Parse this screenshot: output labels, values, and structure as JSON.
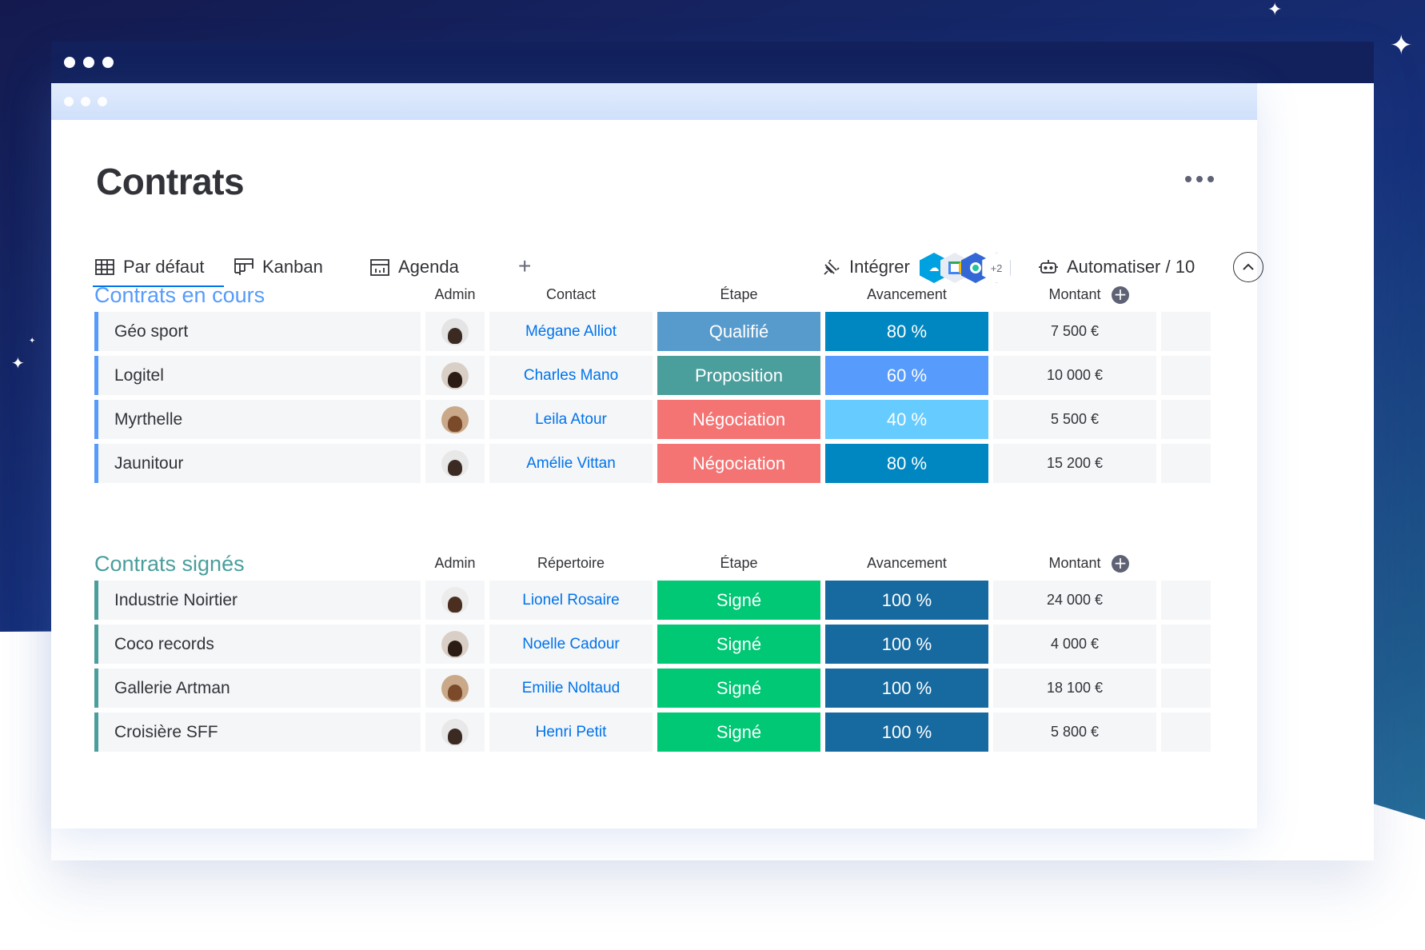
{
  "page_title": "Contrats",
  "tabs": [
    {
      "label": "Par défaut",
      "icon": "table-icon"
    },
    {
      "label": "Kanban",
      "icon": "kanban-icon"
    },
    {
      "label": "Agenda",
      "icon": "calendar-icon"
    }
  ],
  "add_view_symbol": "+",
  "integrate_label": "Intégrer",
  "integrations_more": "+2",
  "automate_label": "Automatiser / 10",
  "groups": [
    {
      "title": "Contrats en cours",
      "color": "#579bfc",
      "columns": [
        "Admin",
        "Contact",
        "Étape",
        "Avancement",
        "Montant"
      ],
      "rows": [
        {
          "name": "Géo sport",
          "contact": "Mégane Alliot",
          "stage": "Qualifié",
          "stage_color": "#579bcc",
          "progress": "80 %",
          "progress_color": "#0086c0",
          "amount": "7 500 €"
        },
        {
          "name": "Logitel",
          "contact": "Charles Mano",
          "stage": "Proposition",
          "stage_color": "#4a9e9c",
          "progress": "60 %",
          "progress_color": "#579bfc",
          "amount": "10 000 €"
        },
        {
          "name": "Myrthelle",
          "contact": "Leila Atour",
          "stage": "Négociation",
          "stage_color": "#f47373",
          "progress": "40 %",
          "progress_color": "#66ccff",
          "amount": "5 500 €"
        },
        {
          "name": "Jaunitour",
          "contact": "Amélie Vittan",
          "stage": "Négociation",
          "stage_color": "#f47373",
          "progress": "80 %",
          "progress_color": "#0086c0",
          "amount": "15 200 €"
        }
      ]
    },
    {
      "title": "Contrats signés",
      "color": "#4a9e9c",
      "columns": [
        "Admin",
        "Répertoire",
        "Étape",
        "Avancement",
        "Montant"
      ],
      "rows": [
        {
          "name": "Industrie Noirtier",
          "contact": "Lionel Rosaire",
          "stage": "Signé",
          "stage_color": "#00c875",
          "progress": "100 %",
          "progress_color": "#176aa0",
          "amount": "24 000 €"
        },
        {
          "name": "Coco records",
          "contact": "Noelle Cadour",
          "stage": "Signé",
          "stage_color": "#00c875",
          "progress": "100 %",
          "progress_color": "#176aa0",
          "amount": "4 000 €"
        },
        {
          "name": "Gallerie Artman",
          "contact": "Emilie Noltaud",
          "stage": "Signé",
          "stage_color": "#00c875",
          "progress": "100 %",
          "progress_color": "#176aa0",
          "amount": "18 100 €"
        },
        {
          "name": "Croisière SFF",
          "contact": "Henri Petit",
          "stage": "Signé",
          "stage_color": "#00c875",
          "progress": "100 %",
          "progress_color": "#176aa0",
          "amount": "5 800 €"
        }
      ]
    }
  ]
}
